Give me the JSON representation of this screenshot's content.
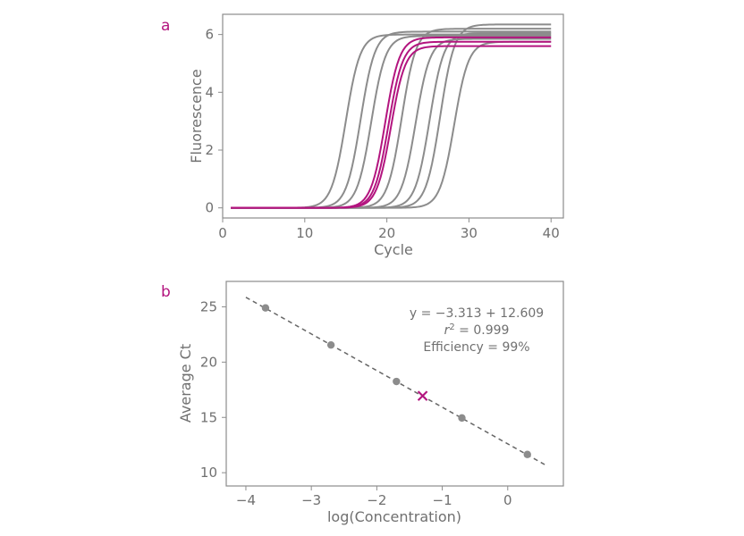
{
  "accent_color": "#b3157f",
  "curve_color": "#8c8c8c",
  "chart_data": [
    {
      "panel": "a",
      "type": "line",
      "xlabel": "Cycle",
      "ylabel": "Fluorescence",
      "xlim": [
        0,
        41.5
      ],
      "ylim": [
        -0.35,
        6.7
      ],
      "xticks": [
        "0",
        "10",
        "20",
        "30",
        "40"
      ],
      "yticks": [
        "0",
        "2",
        "4",
        "6"
      ],
      "grid": false,
      "x": [
        1,
        40
      ],
      "series": [
        {
          "color": "#8c8c8c",
          "ct": 15.0,
          "plateau": 6.0,
          "slope": 1.15
        },
        {
          "color": "#8c8c8c",
          "ct": 16.8,
          "plateau": 6.1,
          "slope": 1.15
        },
        {
          "color": "#8c8c8c",
          "ct": 18.1,
          "plateau": 5.95,
          "slope": 1.15
        },
        {
          "color": "#b3157f",
          "ct": 19.8,
          "plateau": 5.9,
          "slope": 1.15
        },
        {
          "color": "#b3157f",
          "ct": 20.2,
          "plateau": 5.75,
          "slope": 1.15
        },
        {
          "color": "#b3157f",
          "ct": 20.5,
          "plateau": 5.6,
          "slope": 1.15
        },
        {
          "color": "#8c8c8c",
          "ct": 21.8,
          "plateau": 6.2,
          "slope": 1.15
        },
        {
          "color": "#8c8c8c",
          "ct": 23.5,
          "plateau": 5.85,
          "slope": 1.15
        },
        {
          "color": "#8c8c8c",
          "ct": 25.2,
          "plateau": 6.05,
          "slope": 1.15
        },
        {
          "color": "#8c8c8c",
          "ct": 26.5,
          "plateau": 6.35,
          "slope": 1.15
        },
        {
          "color": "#8c8c8c",
          "ct": 28.2,
          "plateau": 5.75,
          "slope": 1.15
        }
      ]
    },
    {
      "panel": "b",
      "type": "scatter",
      "xlabel": "log(Concentration)",
      "ylabel": "Average Ct",
      "xlim": [
        -4.3,
        0.85
      ],
      "ylim": [
        8.8,
        27.3
      ],
      "xticks": [
        "−4",
        "−3",
        "−2",
        "−1",
        "0"
      ],
      "yticks": [
        "10",
        "15",
        "20",
        "25"
      ],
      "grid": false,
      "points": [
        {
          "x": -3.7,
          "y": 24.9
        },
        {
          "x": -2.7,
          "y": 21.55
        },
        {
          "x": -1.7,
          "y": 18.25
        },
        {
          "x": -0.7,
          "y": 14.95
        },
        {
          "x": 0.3,
          "y": 11.65
        }
      ],
      "unknown": {
        "x": -1.3,
        "y": 16.95
      },
      "fit_line": {
        "slope": -3.313,
        "intercept": 12.609,
        "x_range": [
          -4.0,
          0.6
        ]
      },
      "annotations": [
        "y = −3.313 + 12.609",
        "r² = 0.999",
        "Efficiency = 99%"
      ]
    }
  ]
}
